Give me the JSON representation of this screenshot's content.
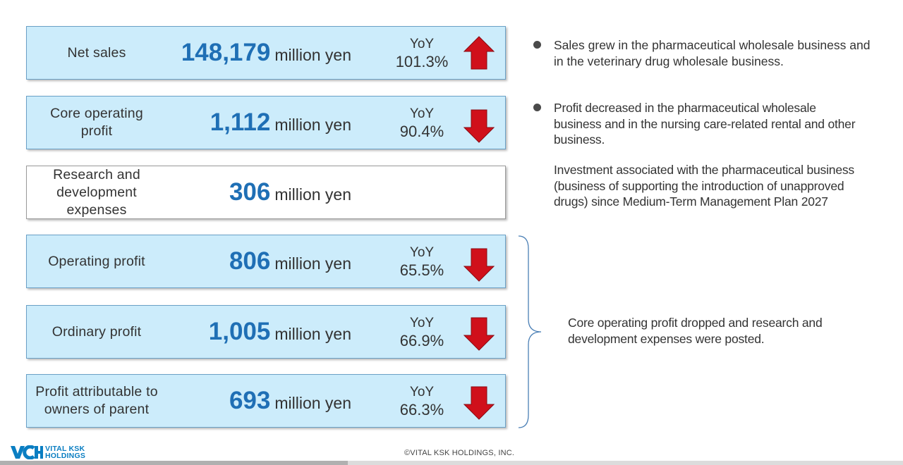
{
  "kpis": [
    {
      "label": "Net sales",
      "value": "148,179",
      "unit": "million yen",
      "yoy_label": "YoY",
      "yoy_value": "101.3%",
      "trend": "up"
    },
    {
      "label": "Core operating profit",
      "value": "1,112",
      "unit": "million yen",
      "yoy_label": "YoY",
      "yoy_value": "90.4%",
      "trend": "down"
    },
    {
      "label": "Research and development expenses",
      "value": "306",
      "unit": "million yen",
      "yoy_label": "",
      "yoy_value": "",
      "trend": "none"
    },
    {
      "label": "Operating profit",
      "value": "806",
      "unit": "million yen",
      "yoy_label": "YoY",
      "yoy_value": "65.5%",
      "trend": "down"
    },
    {
      "label": "Ordinary profit",
      "value": "1,005",
      "unit": "million yen",
      "yoy_label": "YoY",
      "yoy_value": "66.9%",
      "trend": "down"
    },
    {
      "label": "Profit attributable to owners of parent",
      "value": "693",
      "unit": "million yen",
      "yoy_label": "YoY",
      "yoy_value": "66.3%",
      "trend": "down"
    }
  ],
  "notes": {
    "sales": "Sales grew in the pharmaceutical wholesale business and in the veterinary drug wholesale business.",
    "profit": "Profit decreased in the pharmaceutical wholesale business and in the nursing care-related rental and other business.",
    "investment": "Investment associated with the pharmaceutical business (business of supporting the introduction of unapproved drugs) since Medium-Term Management Plan 2027",
    "summary": "Core operating profit dropped and research and development expenses were posted."
  },
  "footer": {
    "copyright": "©VITAL KSK HOLDINGS, INC.",
    "logo_line1": "VITAL KSK",
    "logo_line2": "HOLDINGS"
  },
  "colors": {
    "card_bg": "#ccecfb",
    "value_blue": "#1f6fb5",
    "arrow_red": "#d0101b",
    "logo_blue": "#0a7ec2"
  },
  "icons": {
    "up": "arrow-up-icon",
    "down": "arrow-down-icon",
    "bullet": "bullet-icon",
    "brace": "brace-icon"
  }
}
